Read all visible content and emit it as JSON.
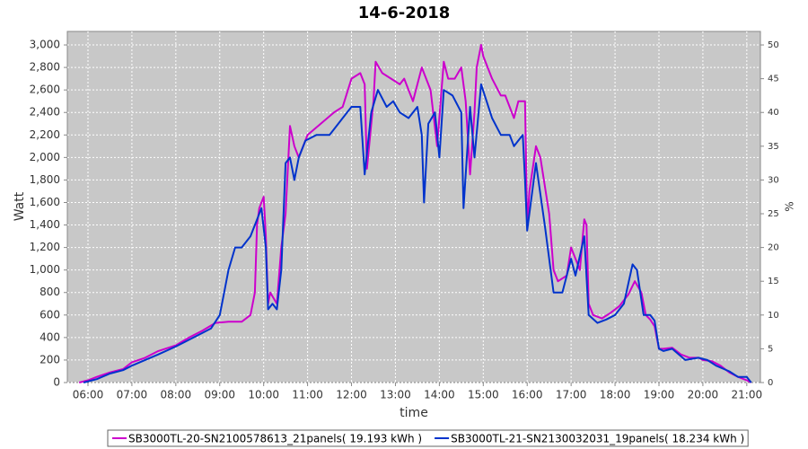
{
  "chart_data": {
    "type": "line",
    "title": "14-6-2018",
    "x_label": "time",
    "y_label": "Watt",
    "y2_label": "%",
    "grid": true,
    "background": "#c8c8c8",
    "legend": "bottom",
    "xlim": [
      5.53,
      21.31
    ],
    "xticks": [
      {
        "value": 6,
        "label": "06:00"
      },
      {
        "value": 7,
        "label": "07:00"
      },
      {
        "value": 8,
        "label": "08:00"
      },
      {
        "value": 9,
        "label": "09:00"
      },
      {
        "value": 10,
        "label": "10:00"
      },
      {
        "value": 11,
        "label": "11:00"
      },
      {
        "value": 12,
        "label": "12:00"
      },
      {
        "value": 13,
        "label": "13:00"
      },
      {
        "value": 14,
        "label": "14:00"
      },
      {
        "value": 15,
        "label": "15:00"
      },
      {
        "value": 16,
        "label": "16:00"
      },
      {
        "value": 17,
        "label": "17:00"
      },
      {
        "value": 18,
        "label": "18:00"
      },
      {
        "value": 19,
        "label": "19:00"
      },
      {
        "value": 20,
        "label": "20:00"
      },
      {
        "value": 21,
        "label": "21:00"
      }
    ],
    "ylim": [
      0,
      3120
    ],
    "yticks": [
      0,
      200,
      400,
      600,
      800,
      {
        "value": 1000,
        "label": "1,000"
      },
      {
        "value": 1200,
        "label": "1,200"
      },
      {
        "value": 1400,
        "label": "1,400"
      },
      {
        "value": 1600,
        "label": "1,600"
      },
      {
        "value": 1800,
        "label": "1,800"
      },
      {
        "value": 2000,
        "label": "2,000"
      },
      {
        "value": 2200,
        "label": "2,200"
      },
      {
        "value": 2400,
        "label": "2,400"
      },
      {
        "value": 2600,
        "label": "2,600"
      },
      {
        "value": 2800,
        "label": "2,800"
      },
      {
        "value": 3000,
        "label": "3,000"
      }
    ],
    "y2lim": [
      0,
      52
    ],
    "y2ticks": [
      0,
      5,
      10,
      15,
      20,
      25,
      30,
      35,
      40,
      45,
      50
    ],
    "series": [
      {
        "name": "SB3000TL-20-SN2100578613_21panels( 19.193 kWh )",
        "color": "#cc00cc",
        "x": [
          5.8,
          6.0,
          6.2,
          6.5,
          6.8,
          7.0,
          7.3,
          7.6,
          8.0,
          8.3,
          8.6,
          8.9,
          9.2,
          9.5,
          9.7,
          9.8,
          9.85,
          9.9,
          10.0,
          10.05,
          10.1,
          10.15,
          10.3,
          10.4,
          10.5,
          10.6,
          10.7,
          10.8,
          11.0,
          11.3,
          11.6,
          11.8,
          12.0,
          12.2,
          12.3,
          12.35,
          12.5,
          12.55,
          12.7,
          12.9,
          13.1,
          13.2,
          13.4,
          13.6,
          13.8,
          13.95,
          14.05,
          14.1,
          14.2,
          14.35,
          14.5,
          14.6,
          14.7,
          14.8,
          14.85,
          14.95,
          15.0,
          15.2,
          15.4,
          15.5,
          15.7,
          15.8,
          15.95,
          16.0,
          16.05,
          16.2,
          16.3,
          16.5,
          16.6,
          16.7,
          16.9,
          17.0,
          17.1,
          17.2,
          17.3,
          17.35,
          17.4,
          17.5,
          17.7,
          17.9,
          18.1,
          18.3,
          18.45,
          18.6,
          18.7,
          18.8,
          18.9,
          19.0,
          19.1,
          19.3,
          19.5,
          19.7,
          19.9,
          20.0,
          20.2,
          20.4,
          20.6,
          20.8,
          21.0,
          21.1
        ],
        "values": [
          0,
          20,
          50,
          90,
          120,
          180,
          220,
          280,
          330,
          400,
          460,
          530,
          540,
          540,
          600,
          800,
          1400,
          1550,
          1650,
          1300,
          700,
          800,
          700,
          1200,
          1500,
          2280,
          2100,
          2000,
          2200,
          2300,
          2400,
          2450,
          2700,
          2750,
          2650,
          1900,
          2500,
          2850,
          2750,
          2700,
          2650,
          2700,
          2500,
          2800,
          2600,
          2100,
          2600,
          2850,
          2700,
          2700,
          2800,
          2500,
          1850,
          2400,
          2800,
          3000,
          2900,
          2700,
          2550,
          2550,
          2350,
          2500,
          2500,
          1400,
          1700,
          2100,
          2000,
          1500,
          1000,
          900,
          950,
          1200,
          1100,
          1000,
          1450,
          1400,
          700,
          600,
          570,
          620,
          680,
          780,
          900,
          800,
          600,
          560,
          500,
          300,
          300,
          310,
          250,
          220,
          220,
          200,
          190,
          150,
          90,
          50,
          20,
          0
        ]
      },
      {
        "name": "SB3000TL-21-SN2130032031_19panels( 18.234 kWh )",
        "color": "#0033cc",
        "x": [
          5.9,
          6.2,
          6.5,
          6.8,
          7.0,
          7.3,
          7.6,
          8.0,
          8.3,
          8.6,
          8.8,
          9.0,
          9.1,
          9.2,
          9.35,
          9.5,
          9.7,
          9.8,
          9.95,
          10.05,
          10.1,
          10.2,
          10.3,
          10.4,
          10.5,
          10.6,
          10.7,
          10.8,
          10.95,
          11.2,
          11.5,
          11.8,
          12.0,
          12.2,
          12.3,
          12.45,
          12.6,
          12.8,
          12.95,
          13.1,
          13.3,
          13.5,
          13.6,
          13.65,
          13.75,
          13.9,
          14.0,
          14.1,
          14.3,
          14.5,
          14.55,
          14.7,
          14.8,
          14.95,
          15.2,
          15.4,
          15.6,
          15.7,
          15.9,
          15.95,
          16.0,
          16.2,
          16.4,
          16.6,
          16.8,
          17.0,
          17.1,
          17.3,
          17.4,
          17.6,
          17.8,
          18.0,
          18.2,
          18.4,
          18.5,
          18.65,
          18.8,
          18.9,
          19.0,
          19.1,
          19.3,
          19.6,
          19.9,
          20.1,
          20.3,
          20.6,
          20.8,
          21.0,
          21.1
        ],
        "values": [
          0,
          30,
          80,
          110,
          150,
          200,
          250,
          320,
          380,
          440,
          480,
          600,
          800,
          1000,
          1200,
          1200,
          1300,
          1400,
          1550,
          1200,
          650,
          700,
          650,
          1000,
          1950,
          2000,
          1800,
          2000,
          2150,
          2200,
          2200,
          2350,
          2450,
          2450,
          1850,
          2400,
          2600,
          2450,
          2500,
          2400,
          2350,
          2450,
          2200,
          1600,
          2300,
          2400,
          2000,
          2600,
          2550,
          2400,
          1550,
          2450,
          2000,
          2650,
          2350,
          2200,
          2200,
          2100,
          2200,
          1800,
          1350,
          1950,
          1400,
          800,
          800,
          1100,
          950,
          1300,
          600,
          530,
          560,
          600,
          700,
          1050,
          1000,
          600,
          600,
          550,
          300,
          280,
          300,
          200,
          220,
          200,
          150,
          100,
          50,
          50,
          0
        ]
      }
    ]
  }
}
